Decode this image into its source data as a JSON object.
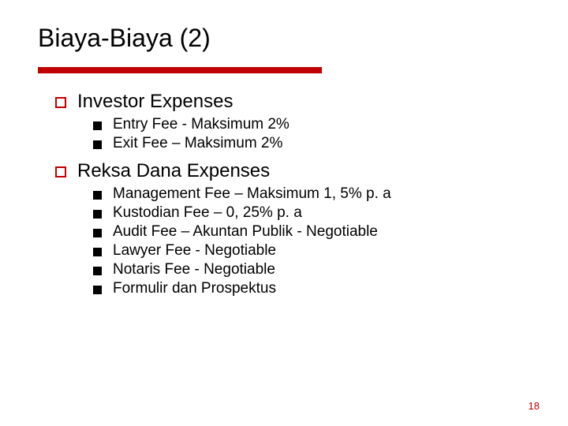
{
  "slide": {
    "title": "Biaya-Biaya (2)",
    "title_fontsize": 32,
    "title_color": "#000000",
    "underline_color": "#c00000",
    "underline_width": 360,
    "underline_height": 8,
    "background_color": "#ffffff",
    "level1_bullet_border_color": "#c00000",
    "level1_fontsize": 24,
    "level2_bullet_color": "#000000",
    "level2_fontsize": 19,
    "sections": [
      {
        "heading": "Investor Expenses",
        "items": [
          "Entry Fee -  Maksimum 2%",
          "Exit Fee – Maksimum 2%"
        ]
      },
      {
        "heading": "Reksa Dana Expenses",
        "items": [
          "Management Fee – Maksimum 1, 5% p. a",
          "Kustodian Fee – 0, 25% p. a",
          "Audit Fee – Akuntan Publik - Negotiable",
          "Lawyer Fee - Negotiable",
          "Notaris Fee - Negotiable",
          "Formulir dan Prospektus"
        ]
      }
    ],
    "page_number": "18",
    "page_number_color": "#c00000",
    "page_number_fontsize": 13
  }
}
